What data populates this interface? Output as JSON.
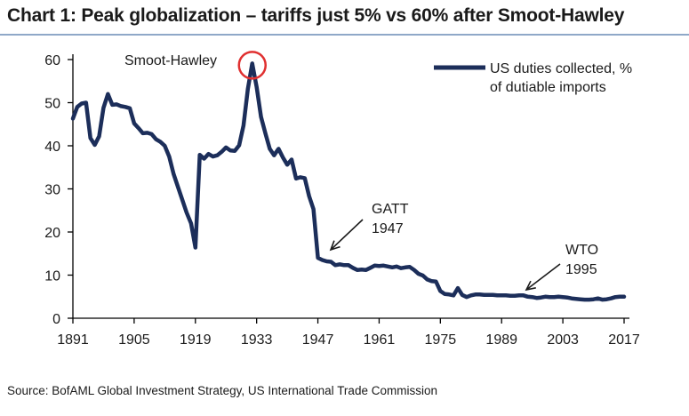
{
  "title": "Chart 1: Peak globalization – tariffs just 5% vs 60% after Smoot-Hawley",
  "source": "Source: BofAML Global Investment Strategy, US International Trade Commission",
  "colors": {
    "line": "#1c2e5a",
    "highlight": "#e03030",
    "axis": "#000000"
  },
  "chart_data": {
    "type": "line",
    "title": "Chart 1: Peak globalization – tariffs just 5% vs 60% after Smoot-Hawley",
    "xlabel": "",
    "ylabel": "",
    "xlim": [
      1891,
      2017
    ],
    "ylim": [
      0,
      60
    ],
    "x_ticks": [
      1891,
      1905,
      1919,
      1933,
      1947,
      1961,
      1975,
      1989,
      2003,
      2017
    ],
    "y_ticks": [
      0,
      10,
      20,
      30,
      40,
      50,
      60
    ],
    "grid": false,
    "legend_position": "top-right",
    "series": [
      {
        "name": "US duties collected, % of dutiable imports",
        "x": [
          1891,
          1892,
          1893,
          1894,
          1895,
          1896,
          1897,
          1898,
          1899,
          1900,
          1901,
          1902,
          1903,
          1904,
          1905,
          1906,
          1907,
          1908,
          1909,
          1910,
          1911,
          1912,
          1913,
          1914,
          1915,
          1916,
          1917,
          1918,
          1919,
          1920,
          1921,
          1922,
          1923,
          1924,
          1925,
          1926,
          1927,
          1928,
          1929,
          1930,
          1931,
          1932,
          1933,
          1934,
          1935,
          1936,
          1937,
          1938,
          1939,
          1940,
          1941,
          1942,
          1943,
          1944,
          1945,
          1946,
          1947,
          1948,
          1949,
          1950,
          1951,
          1952,
          1953,
          1954,
          1955,
          1956,
          1957,
          1958,
          1959,
          1960,
          1961,
          1962,
          1963,
          1964,
          1965,
          1966,
          1967,
          1968,
          1969,
          1970,
          1971,
          1972,
          1973,
          1974,
          1975,
          1976,
          1977,
          1978,
          1979,
          1980,
          1981,
          1982,
          1983,
          1984,
          1985,
          1986,
          1987,
          1988,
          1989,
          1990,
          1991,
          1992,
          1993,
          1994,
          1995,
          1996,
          1997,
          1998,
          1999,
          2000,
          2001,
          2002,
          2003,
          2004,
          2005,
          2006,
          2007,
          2008,
          2009,
          2010,
          2011,
          2012,
          2013,
          2014,
          2015,
          2016,
          2017
        ],
        "values": [
          46.3,
          49.0,
          49.8,
          50.0,
          41.8,
          40.2,
          42.2,
          48.8,
          52.0,
          49.5,
          49.6,
          49.2,
          49.0,
          48.7,
          45.2,
          44.1,
          42.9,
          43.0,
          42.7,
          41.5,
          40.9,
          40.0,
          37.5,
          33.5,
          30.5,
          27.5,
          24.5,
          22.0,
          16.4,
          37.9,
          37.0,
          38.1,
          37.5,
          37.8,
          38.6,
          39.6,
          38.9,
          38.8,
          40.1,
          44.7,
          53.2,
          59.1,
          53.6,
          46.7,
          42.9,
          39.3,
          37.8,
          39.3,
          37.3,
          35.6,
          36.8,
          32.4,
          32.7,
          32.5,
          28.3,
          25.3,
          14.0,
          13.5,
          13.2,
          13.1,
          12.3,
          12.5,
          12.3,
          12.3,
          11.7,
          11.2,
          11.3,
          11.2,
          11.7,
          12.2,
          12.1,
          12.2,
          12.0,
          11.8,
          12.0,
          11.6,
          11.8,
          11.9,
          11.2,
          10.3,
          9.9,
          9.0,
          8.6,
          8.5,
          6.3,
          5.6,
          5.5,
          5.3,
          7.0,
          5.4,
          4.9,
          5.3,
          5.5,
          5.5,
          5.4,
          5.4,
          5.4,
          5.3,
          5.3,
          5.3,
          5.2,
          5.2,
          5.3,
          5.3,
          5.0,
          4.9,
          4.7,
          4.8,
          5.0,
          4.9,
          4.9,
          5.0,
          4.9,
          4.8,
          4.6,
          4.5,
          4.4,
          4.3,
          4.3,
          4.4,
          4.6,
          4.3,
          4.4,
          4.6,
          4.9,
          5.0,
          5.0
        ]
      }
    ],
    "annotations": [
      {
        "text": "Smoot-Hawley",
        "x": 1932,
        "y": 59.1,
        "circled": true
      },
      {
        "text": "GATT",
        "text2": "1947",
        "x": 1947,
        "y": 15.5
      },
      {
        "text": "WTO",
        "text2": "1995",
        "x": 1996,
        "y": 5.0
      }
    ]
  }
}
